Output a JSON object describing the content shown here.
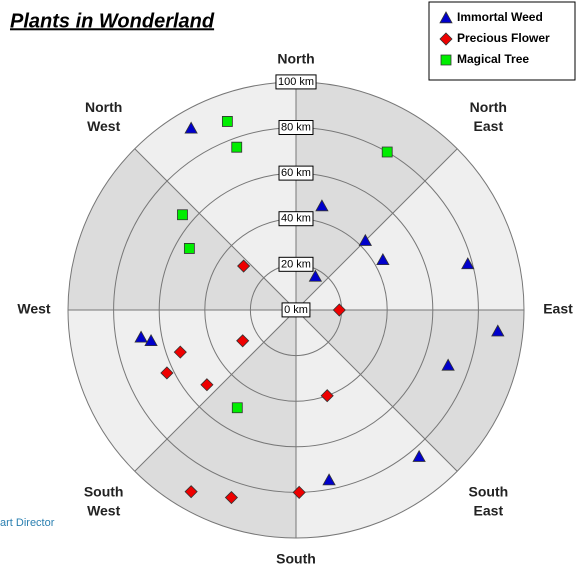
{
  "chart_data": {
    "type": "polar_scatter",
    "title": "Plants in Wonderland",
    "watermark": "art Director",
    "rlim": [
      0,
      100
    ],
    "rticks": [
      {
        "value": 0,
        "label": "0 km"
      },
      {
        "value": 20,
        "label": "20 km"
      },
      {
        "value": 40,
        "label": "40 km"
      },
      {
        "value": 60,
        "label": "60 km"
      },
      {
        "value": 80,
        "label": "80 km"
      },
      {
        "value": 100,
        "label": "100 km"
      }
    ],
    "angle_ticks": [
      {
        "value": 0,
        "label": [
          "North"
        ]
      },
      {
        "value": 45,
        "label": [
          "North",
          "East"
        ]
      },
      {
        "value": 90,
        "label": [
          "East"
        ]
      },
      {
        "value": 135,
        "label": [
          "South",
          "East"
        ]
      },
      {
        "value": 180,
        "label": [
          "South"
        ]
      },
      {
        "value": 225,
        "label": [
          "South",
          "West"
        ]
      },
      {
        "value": 270,
        "label": [
          "West"
        ]
      },
      {
        "value": 315,
        "label": [
          "North",
          "West"
        ]
      }
    ],
    "sector_colors": [
      "#dcdcdc",
      "#efefef"
    ],
    "series": [
      {
        "name": "Immortal Weed",
        "color": "#0000cc",
        "marker": "triangle",
        "theta": [
          330,
          14,
          45,
          60,
          30,
          75,
          96,
          110,
          140,
          169,
          260,
          258
        ],
        "r": [
          92,
          47,
          43,
          44,
          17,
          78,
          89,
          71,
          84,
          76,
          69,
          65
        ]
      },
      {
        "name": "Precious Flower",
        "color": "#ee0000",
        "marker": "diamond",
        "theta": [
          310,
          90,
          240,
          250,
          244,
          230,
          160,
          179,
          199,
          210
        ],
        "r": [
          30,
          19,
          27,
          54,
          63,
          51,
          40,
          80,
          87,
          92
        ]
      },
      {
        "name": "Magical Tree",
        "color": "#00ee00",
        "marker": "square",
        "theta": [
          340,
          340,
          30,
          310,
          300,
          211
        ],
        "r": [
          88,
          76,
          80,
          65,
          54,
          50
        ]
      }
    ]
  }
}
